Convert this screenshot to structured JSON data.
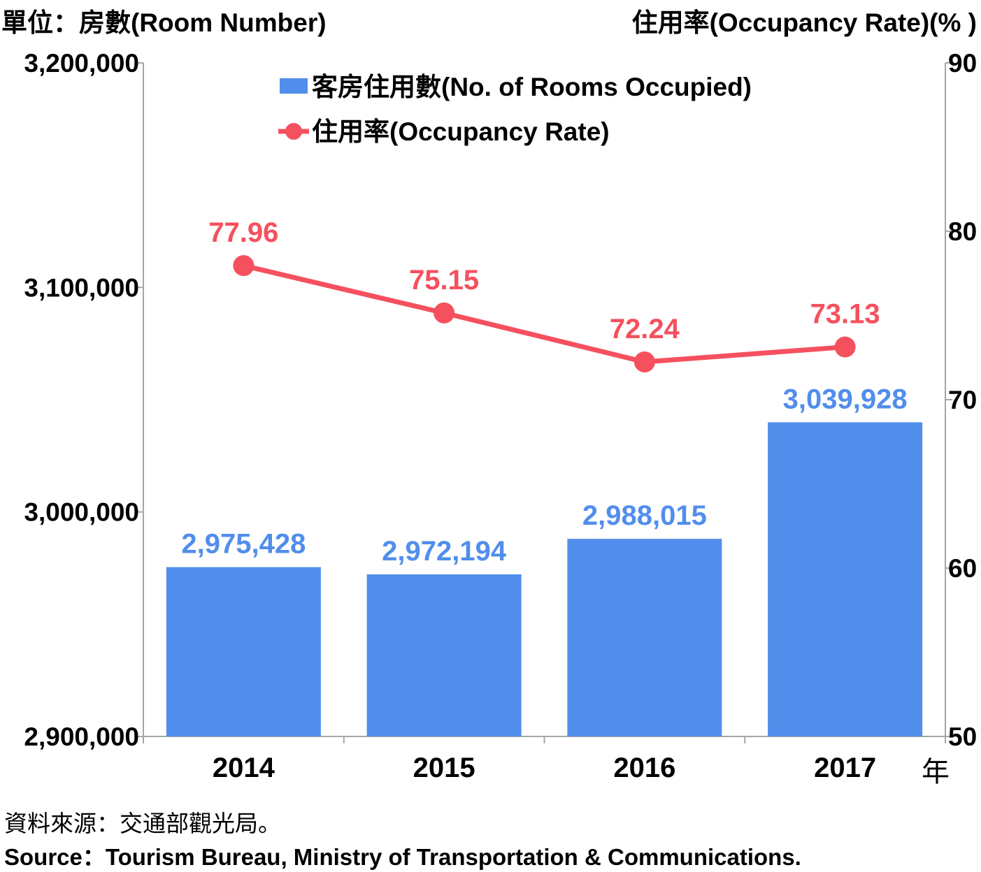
{
  "chart_data": {
    "type": "bar+line",
    "y_left_label": "單位：房數(Room Number)",
    "y_right_label": "住用率(Occupancy Rate)(% )",
    "x_unit": "年",
    "categories": [
      "2014",
      "2015",
      "2016",
      "2017"
    ],
    "ylim_left": [
      2900000,
      3200000
    ],
    "yticks_left": [
      2900000,
      3000000,
      3100000,
      3200000
    ],
    "yticks_left_labels": [
      "2,900,000",
      "3,000,000",
      "3,100,000",
      "3,200,000"
    ],
    "ylim_right": [
      50,
      90
    ],
    "yticks_right": [
      50,
      60,
      70,
      80,
      90
    ],
    "yticks_right_labels": [
      "50",
      "60",
      "70",
      "80",
      "90"
    ],
    "legend_position": "top-center",
    "grid": false,
    "series": [
      {
        "name": "客房住用數(No. of Rooms Occupied)",
        "type": "bar",
        "axis": "left",
        "color": "#518eec",
        "values": [
          2975428,
          2972194,
          2988015,
          3039928
        ],
        "labels": [
          "2,975,428",
          "2,972,194",
          "2,988,015",
          "3,039,928"
        ]
      },
      {
        "name": "住用率(Occupancy Rate)",
        "type": "line",
        "axis": "right",
        "color": "#f5505e",
        "values": [
          77.96,
          75.15,
          72.24,
          73.13
        ],
        "labels": [
          "77.96",
          "75.15",
          "72.24",
          "73.13"
        ]
      }
    ]
  },
  "source": {
    "zh": "資料來源：交通部觀光局。",
    "en": "Source：Tourism Bureau, Ministry of Transportation & Communications."
  }
}
